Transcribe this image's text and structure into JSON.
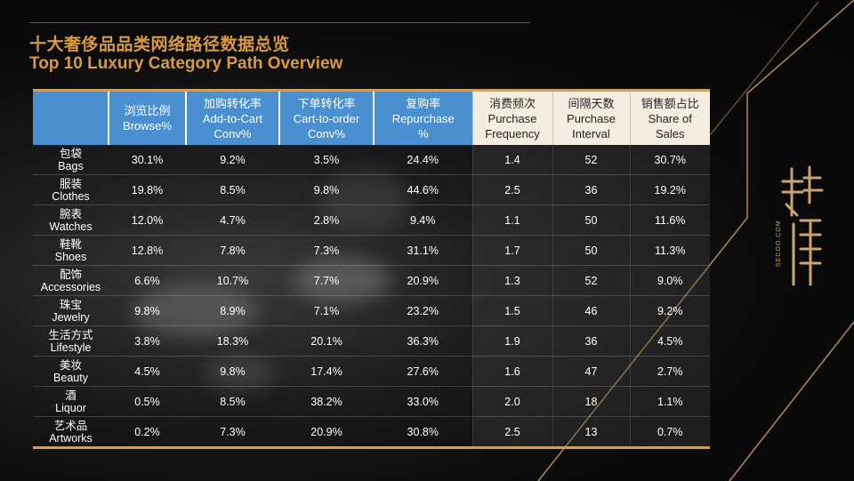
{
  "title_cn": "十大奢侈品品类网络路径数据总览",
  "title_en": "Top 10 Luxury Category Path Overview",
  "logo_text": "SECOO.COM",
  "headers": [
    {
      "cn": "",
      "en": ""
    },
    {
      "cn": "浏览比例",
      "en": "Browse%"
    },
    {
      "cn": "加购转化率",
      "en": "Add-to-Cart",
      "en2": "Conv%"
    },
    {
      "cn": "下单转化率",
      "en": "Cart-to-order",
      "en2": "Conv%"
    },
    {
      "cn": "复购率",
      "en": "Repurchase",
      "en2": "%"
    },
    {
      "cn": "消费频次",
      "en": "Purchase",
      "en2": "Frequency"
    },
    {
      "cn": "间隔天数",
      "en": "Purchase",
      "en2": "Interval"
    },
    {
      "cn": "销售额占比",
      "en": "Share of",
      "en2": "Sales"
    }
  ],
  "rows": [
    {
      "cn": "包袋",
      "en": "Bags",
      "browse": "30.1%",
      "atc": "9.2%",
      "cto": "3.5%",
      "rep": "24.4%",
      "freq": "1.4",
      "interval": "52",
      "share": "30.7%"
    },
    {
      "cn": "服装",
      "en": "Clothes",
      "browse": "19.8%",
      "atc": "8.5%",
      "cto": "9.8%",
      "rep": "44.6%",
      "freq": "2.5",
      "interval": "36",
      "share": "19.2%"
    },
    {
      "cn": "腕表",
      "en": "Watches",
      "browse": "12.0%",
      "atc": "4.7%",
      "cto": "2.8%",
      "rep": "9.4%",
      "freq": "1.1",
      "interval": "50",
      "share": "11.6%"
    },
    {
      "cn": "鞋靴",
      "en": "Shoes",
      "browse": "12.8%",
      "atc": "7.8%",
      "cto": "7.3%",
      "rep": "31.1%",
      "freq": "1.7",
      "interval": "50",
      "share": "11.3%"
    },
    {
      "cn": "配饰",
      "en": "Accessories",
      "browse": "6.6%",
      "atc": "10.7%",
      "cto": "7.7%",
      "rep": "20.9%",
      "freq": "1.3",
      "interval": "52",
      "share": "9.0%"
    },
    {
      "cn": "珠宝",
      "en": "Jewelry",
      "browse": "9.8%",
      "atc": "8.9%",
      "cto": "7.1%",
      "rep": "23.2%",
      "freq": "1.5",
      "interval": "46",
      "share": "9.2%"
    },
    {
      "cn": "生活方式",
      "en": "Lifestyle",
      "browse": "3.8%",
      "atc": "18.3%",
      "cto": "20.1%",
      "rep": "36.3%",
      "freq": "1.9",
      "interval": "36",
      "share": "4.5%"
    },
    {
      "cn": "美妆",
      "en": "Beauty",
      "browse": "4.5%",
      "atc": "9.8%",
      "cto": "17.4%",
      "rep": "27.6%",
      "freq": "1.6",
      "interval": "47",
      "share": "2.7%"
    },
    {
      "cn": "酒",
      "en": "Liquor",
      "browse": "0.5%",
      "atc": "8.5%",
      "cto": "38.2%",
      "rep": "33.0%",
      "freq": "2.0",
      "interval": "18",
      "share": "1.1%"
    },
    {
      "cn": "艺术品",
      "en": "Artworks",
      "browse": "0.2%",
      "atc": "7.3%",
      "cto": "20.9%",
      "rep": "30.8%",
      "freq": "2.5",
      "interval": "13",
      "share": "0.7%"
    }
  ],
  "colors": {
    "gold": "#d99a3e",
    "header_blue": "#4a8fd0",
    "header_cream": "#f4ede0",
    "line_gold": "#c8a06a"
  }
}
